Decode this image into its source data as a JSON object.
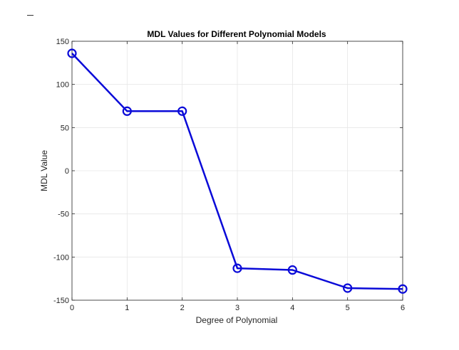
{
  "chart_data": {
    "type": "line",
    "title": "MDL Values for Different Polynomial Models",
    "xlabel": "Degree of Polynomial",
    "ylabel": "MDL Value",
    "x": [
      0,
      1,
      2,
      3,
      4,
      5,
      6
    ],
    "series": [
      {
        "values": [
          136,
          69,
          69,
          -113,
          -115,
          -136,
          -137
        ]
      }
    ],
    "xlim": [
      0,
      6
    ],
    "ylim": [
      -150,
      150
    ],
    "xticks": [
      "0",
      "1",
      "2",
      "3",
      "4",
      "5",
      "6"
    ],
    "yticks": [
      "150",
      "100",
      "50",
      "0",
      "-50",
      "-100",
      "-150"
    ],
    "grid": true,
    "marker": "circle",
    "line_color": "#0a0ad8",
    "axis_color": "#262626",
    "grid_color": "#e6e6e6"
  }
}
